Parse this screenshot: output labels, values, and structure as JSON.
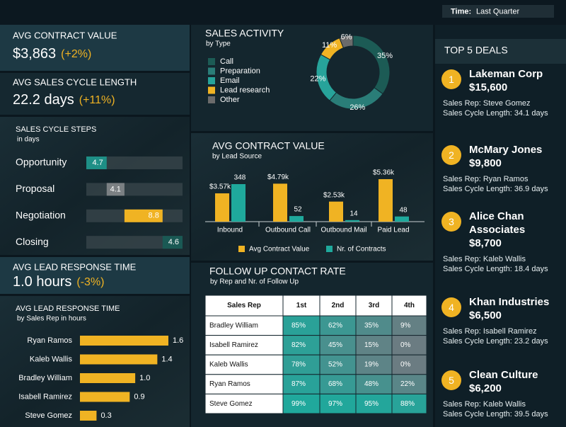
{
  "filter": {
    "label": "Time:",
    "value": "Last Quarter"
  },
  "kpis": [
    {
      "title": "AVG CONTRACT VALUE",
      "value": "$3,863",
      "change": "(+2%)"
    },
    {
      "title": "AVG SALES CYCLE LENGTH",
      "value": "22.2 days",
      "change": "(+11%)"
    },
    {
      "title": "AVG LEAD RESPONSE TIME",
      "value": "1.0 hours",
      "change": "(-3%)"
    }
  ],
  "chart_data": [
    {
      "type": "waterfall",
      "title": "SALES CYCLE STEPS",
      "subtitle": "in days",
      "categories": [
        "Opportunity",
        "Proposal",
        "Negotiation",
        "Closing"
      ],
      "values": [
        4.7,
        4.1,
        8.8,
        4.6
      ],
      "colors": [
        "#1e8f86",
        "#7b8083",
        "#f0b323",
        "#1a5954"
      ]
    },
    {
      "type": "hbar",
      "title": "AVG LEAD RESPONSE TIME",
      "subtitle": "by Sales Rep in hours",
      "categories": [
        "Ryan Ramos",
        "Kaleb Wallis",
        "Bradley William",
        "Isabell Ramirez",
        "Steve Gomez"
      ],
      "values": [
        1.6,
        1.4,
        1,
        0.9,
        0.3
      ],
      "value_labels": [
        "1.6",
        "1.4",
        "1.0",
        "0.9",
        "0.3"
      ],
      "color": "#f0b323"
    },
    {
      "type": "donut",
      "title": "SALES ACTIVITY",
      "subtitle": "by Type",
      "categories": [
        "Call",
        "Preparation",
        "Email",
        "Lead research",
        "Other"
      ],
      "values": [
        35,
        26,
        22,
        11,
        6
      ],
      "value_labels": [
        "35%",
        "26%",
        "22%",
        "11%",
        "6%"
      ],
      "colors": [
        "#1c5b55",
        "#2a7d78",
        "#27a39a",
        "#f0b323",
        "#6b6b6b"
      ]
    },
    {
      "type": "column",
      "title": "AVG CONTRACT VALUE",
      "subtitle": "by Lead Source",
      "categories": [
        "Inbound",
        "Outbound Call",
        "Outbound Mail",
        "Paid Lead"
      ],
      "series": [
        {
          "name": "Avg Contract Value",
          "color": "#f0b323",
          "values": [
            3570,
            4790,
            2530,
            5360
          ],
          "value_labels": [
            "$3.57k",
            "$4.79k",
            "$2.53k",
            "$5.36k"
          ]
        },
        {
          "name": "Nr. of Contracts",
          "color": "#1fa99c",
          "values": [
            348,
            52,
            14,
            48
          ]
        }
      ]
    }
  ],
  "table": {
    "title": "FOLLOW UP CONTACT RATE",
    "subtitle": "by Rep and Nr. of Follow Up",
    "columns": [
      "Sales Rep",
      "1st",
      "2nd",
      "3rd",
      "4th"
    ],
    "rows": [
      [
        "Bradley William",
        "85%",
        "62%",
        "35%",
        "9%"
      ],
      [
        "Isabell Ramirez",
        "82%",
        "45%",
        "15%",
        "0%"
      ],
      [
        "Kaleb Wallis",
        "78%",
        "52%",
        "19%",
        "0%"
      ],
      [
        "Ryan Ramos",
        "87%",
        "68%",
        "48%",
        "22%"
      ],
      [
        "Steve Gomez",
        "99%",
        "97%",
        "95%",
        "88%"
      ]
    ]
  },
  "deals": {
    "title": "TOP 5 DEALS",
    "items": [
      {
        "rank": "1",
        "name": "Lakeman Corp",
        "amount": "$15,600",
        "rep": "Sales Rep: Steve Gomez",
        "cycle": "Sales Cycle Length: 34.1 days"
      },
      {
        "rank": "2",
        "name": "McMary Jones",
        "amount": "$9,800",
        "rep": "Sales Rep: Ryan Ramos",
        "cycle": "Sales Cycle Length: 36.9 days"
      },
      {
        "rank": "3",
        "name": "Alice Chan Associates",
        "amount": "$8,700",
        "rep": "Sales Rep: Kaleb Wallis",
        "cycle": "Sales Cycle Length: 18.4 days"
      },
      {
        "rank": "4",
        "name": "Khan Industries",
        "amount": "$6,500",
        "rep": "Sales Rep: Isabell Ramirez",
        "cycle": "Sales Cycle Length: 23.2 days"
      },
      {
        "rank": "5",
        "name": "Clean Culture",
        "amount": "$6,200",
        "rep": "Sales Rep: Kaleb Wallis",
        "cycle": "Sales Cycle Length: 39.5 days"
      }
    ]
  }
}
